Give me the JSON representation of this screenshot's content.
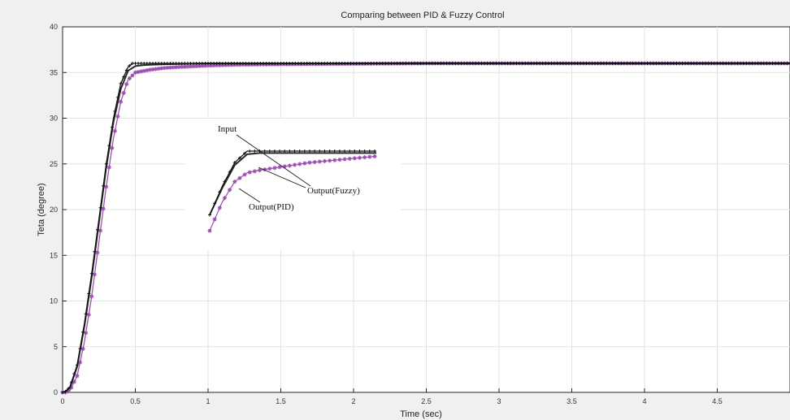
{
  "chart_data": {
    "type": "line",
    "title": "Comparing between PID & Fuzzy Control",
    "xlabel": "Time (sec)",
    "ylabel": "Teta (degree)",
    "xlim": [
      0,
      5
    ],
    "ylim": [
      0,
      40
    ],
    "grid": true,
    "x_ticks": [
      0,
      0.5,
      1,
      1.5,
      2,
      2.5,
      3,
      3.5,
      4,
      4.5
    ],
    "x_tick_labels": [
      "0",
      "0.5",
      "1",
      "1.5",
      "2",
      "2.5",
      "3",
      "3.5",
      "4",
      "4.5"
    ],
    "y_ticks": [
      0,
      5,
      10,
      15,
      20,
      25,
      30,
      35,
      40
    ],
    "y_tick_labels": [
      "0",
      "5",
      "10",
      "15",
      "20",
      "25",
      "30",
      "35",
      "40"
    ],
    "series": [
      {
        "name": "Input",
        "color": "#111111",
        "marker": "plus",
        "x": [
          0,
          0.02,
          0.05,
          0.1,
          0.15,
          0.2,
          0.25,
          0.3,
          0.35,
          0.4,
          0.45,
          0.48,
          0.5,
          0.6,
          1,
          2,
          3,
          4,
          5
        ],
        "y": [
          0,
          0.1,
          0.6,
          3,
          7.5,
          13,
          19,
          25,
          30,
          33.8,
          35.6,
          36,
          36,
          36,
          36,
          36,
          36,
          36,
          36
        ]
      },
      {
        "name": "Output(Fuzzy)",
        "color": "#2a2a2a",
        "marker": "none",
        "x": [
          0,
          0.02,
          0.05,
          0.1,
          0.15,
          0.2,
          0.25,
          0.3,
          0.35,
          0.4,
          0.45,
          0.5,
          0.55,
          0.6,
          0.7,
          1,
          2,
          3,
          4,
          5
        ],
        "y": [
          0,
          0.1,
          0.5,
          2.8,
          7.2,
          12.6,
          18.6,
          24.6,
          29.6,
          33.2,
          35.2,
          35.7,
          35.8,
          35.85,
          35.9,
          36,
          36,
          36,
          36,
          36
        ]
      },
      {
        "name": "Output(PID)",
        "color": "#9b4fb0",
        "marker": "star",
        "x": [
          0,
          0.02,
          0.05,
          0.1,
          0.15,
          0.2,
          0.25,
          0.3,
          0.35,
          0.4,
          0.45,
          0.5,
          0.6,
          0.7,
          0.8,
          1,
          1.2,
          1.5,
          2,
          2.5,
          3,
          4,
          5
        ],
        "y": [
          0,
          0,
          0.2,
          1.8,
          5.5,
          10.5,
          16.5,
          22.5,
          27.8,
          31.8,
          34.2,
          35,
          35.3,
          35.5,
          35.6,
          35.75,
          35.85,
          35.9,
          35.95,
          36,
          36,
          36,
          36
        ]
      }
    ],
    "annotations": [
      {
        "text": "Input",
        "target_series": "Input"
      },
      {
        "text": "Output(Fuzzy)",
        "target_series": "Output(Fuzzy)"
      },
      {
        "text": "Output(PID)",
        "target_series": "Output(PID)"
      }
    ],
    "inset": {
      "description_series": "zoomed rise region reproduced as inset with the same three series",
      "x": [
        0,
        0.15,
        0.3,
        0.45,
        0.6,
        0.8,
        1.0,
        1.2,
        1.6,
        2.0
      ],
      "input_y": [
        0,
        0.45,
        0.82,
        1.0,
        1.0,
        1.0,
        1.0,
        1.0,
        1.0,
        1.0
      ],
      "fuzzy_y": [
        0,
        0.42,
        0.78,
        0.95,
        0.97,
        0.97,
        0.97,
        0.97,
        0.97,
        0.97
      ],
      "pid_y": [
        -0.25,
        0.2,
        0.52,
        0.66,
        0.7,
        0.74,
        0.78,
        0.82,
        0.87,
        0.92
      ]
    }
  }
}
